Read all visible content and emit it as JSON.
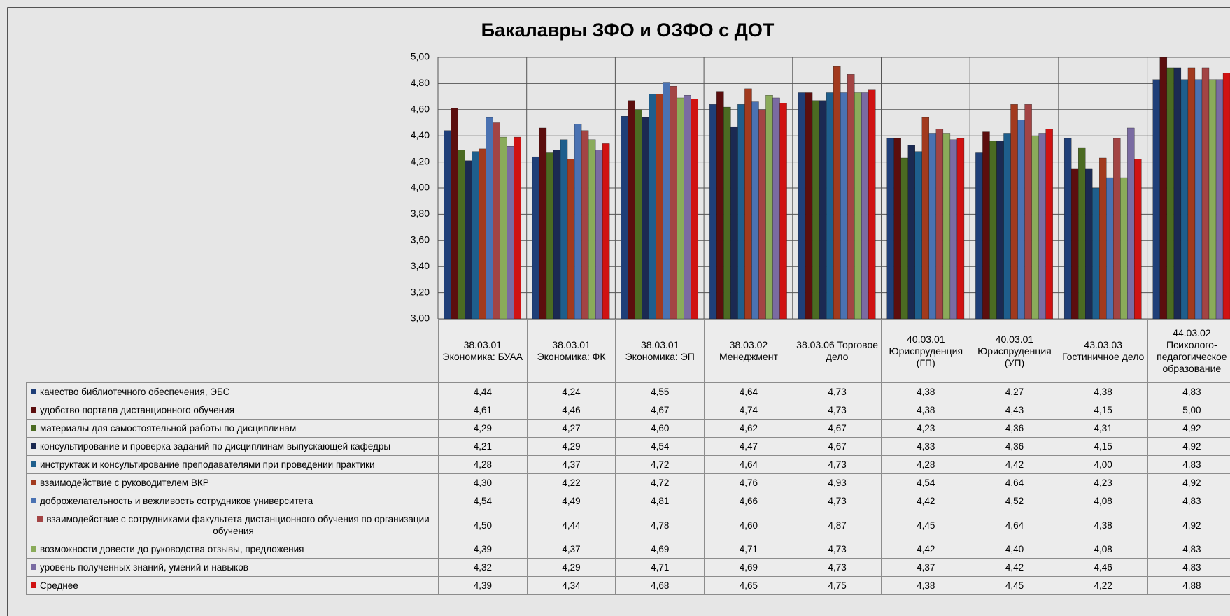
{
  "chart_data": {
    "type": "bar",
    "title": "Бакалавры ЗФО и ОЗФО с ДОТ",
    "categories": [
      "38.03.01 Экономика: БУАА",
      "38.03.01 Экономика: ФК",
      "38.03.01 Экономика: ЭП",
      "38.03.02 Менеджмент",
      "38.03.06 Торговое дело",
      "40.03.01 Юриспруденция (ГП)",
      "40.03.01 Юриспруденция (УП)",
      "43.03.03 Гостиничное дело",
      "44.03.02 Психолого-педагогическое образование"
    ],
    "ylim": [
      3,
      5
    ],
    "yticks": [
      {
        "value": 3,
        "label": "3,00"
      },
      {
        "value": 3.2,
        "label": "3,20"
      },
      {
        "value": 3.4,
        "label": "3,40"
      },
      {
        "value": 3.6,
        "label": "3,60"
      },
      {
        "value": 3.8,
        "label": "3,80"
      },
      {
        "value": 4,
        "label": "4,00"
      },
      {
        "value": 4.2,
        "label": "4,20"
      },
      {
        "value": 4.4,
        "label": "4,40"
      },
      {
        "value": 4.6,
        "label": "4,60"
      },
      {
        "value": 4.8,
        "label": "4,80"
      },
      {
        "value": 5,
        "label": "5,00"
      }
    ],
    "grid": true,
    "series": [
      {
        "name": "качество библиотечного обеспечения,  ЭБС",
        "color": "#1f3f78",
        "values": [
          4.44,
          4.24,
          4.55,
          4.64,
          4.73,
          4.38,
          4.27,
          4.38,
          4.83
        ],
        "value_labels": [
          "4,44",
          "4,24",
          "4,55",
          "4,64",
          "4,73",
          "4,38",
          "4,27",
          "4,38",
          "4,83"
        ]
      },
      {
        "name": "удобство портала дистанционного обучения",
        "color": "#5c0e0e",
        "values": [
          4.61,
          4.46,
          4.67,
          4.74,
          4.73,
          4.38,
          4.43,
          4.15,
          5.0
        ],
        "value_labels": [
          "4,61",
          "4,46",
          "4,67",
          "4,74",
          "4,73",
          "4,38",
          "4,43",
          "4,15",
          "5,00"
        ]
      },
      {
        "name": "материалы для самостоятельной работы по дисциплинам",
        "color": "#4b6b22",
        "values": [
          4.29,
          4.27,
          4.6,
          4.62,
          4.67,
          4.23,
          4.36,
          4.31,
          4.92
        ],
        "value_labels": [
          "4,29",
          "4,27",
          "4,60",
          "4,62",
          "4,67",
          "4,23",
          "4,36",
          "4,31",
          "4,92"
        ]
      },
      {
        "name": "консультирование  и проверка заданий по дисциплинам выпускающей кафедры",
        "color": "#1b2a52",
        "values": [
          4.21,
          4.29,
          4.54,
          4.47,
          4.67,
          4.33,
          4.36,
          4.15,
          4.92
        ],
        "value_labels": [
          "4,21",
          "4,29",
          "4,54",
          "4,47",
          "4,67",
          "4,33",
          "4,36",
          "4,15",
          "4,92"
        ]
      },
      {
        "name": "инструктаж и консультирование преподавателями при проведении практики",
        "color": "#1e5e8c",
        "values": [
          4.28,
          4.37,
          4.72,
          4.64,
          4.73,
          4.28,
          4.42,
          4.0,
          4.83
        ],
        "value_labels": [
          "4,28",
          "4,37",
          "4,72",
          "4,64",
          "4,73",
          "4,28",
          "4,42",
          "4,00",
          "4,83"
        ]
      },
      {
        "name": "взаимодействие с руководителем ВКР",
        "color": "#a23a1e",
        "values": [
          4.3,
          4.22,
          4.72,
          4.76,
          4.93,
          4.54,
          4.64,
          4.23,
          4.92
        ],
        "value_labels": [
          "4,30",
          "4,22",
          "4,72",
          "4,76",
          "4,93",
          "4,54",
          "4,64",
          "4,23",
          "4,92"
        ]
      },
      {
        "name": "доброжелательность и вежливость сотрудников университета",
        "color": "#4a72b2",
        "values": [
          4.54,
          4.49,
          4.81,
          4.66,
          4.73,
          4.42,
          4.52,
          4.08,
          4.83
        ],
        "value_labels": [
          "4,54",
          "4,49",
          "4,81",
          "4,66",
          "4,73",
          "4,42",
          "4,52",
          "4,08",
          "4,83"
        ]
      },
      {
        "name": "взаимодействие с сотрудниками факультета дистанционного обучения по организации обучения",
        "color": "#a34444",
        "values": [
          4.5,
          4.44,
          4.78,
          4.6,
          4.87,
          4.45,
          4.64,
          4.38,
          4.92
        ],
        "value_labels": [
          "4,50",
          "4,44",
          "4,78",
          "4,60",
          "4,87",
          "4,45",
          "4,64",
          "4,38",
          "4,92"
        ]
      },
      {
        "name": "возможности довести до руководства отзывы, предложения",
        "color": "#8aab5a",
        "values": [
          4.39,
          4.37,
          4.69,
          4.71,
          4.73,
          4.42,
          4.4,
          4.08,
          4.83
        ],
        "value_labels": [
          "4,39",
          "4,37",
          "4,69",
          "4,71",
          "4,73",
          "4,42",
          "4,40",
          "4,08",
          "4,83"
        ]
      },
      {
        "name": "уровень полученных знаний, умений и навыков",
        "color": "#7a6ba2",
        "values": [
          4.32,
          4.29,
          4.71,
          4.69,
          4.73,
          4.37,
          4.42,
          4.46,
          4.83
        ],
        "value_labels": [
          "4,32",
          "4,29",
          "4,71",
          "4,69",
          "4,73",
          "4,37",
          "4,42",
          "4,46",
          "4,83"
        ]
      },
      {
        "name": "Среднее",
        "color": "#d01212",
        "values": [
          4.39,
          4.34,
          4.68,
          4.65,
          4.75,
          4.38,
          4.45,
          4.22,
          4.88
        ],
        "value_labels": [
          "4,39",
          "4,34",
          "4,68",
          "4,65",
          "4,75",
          "4,38",
          "4,45",
          "4,22",
          "4,88"
        ]
      }
    ]
  }
}
